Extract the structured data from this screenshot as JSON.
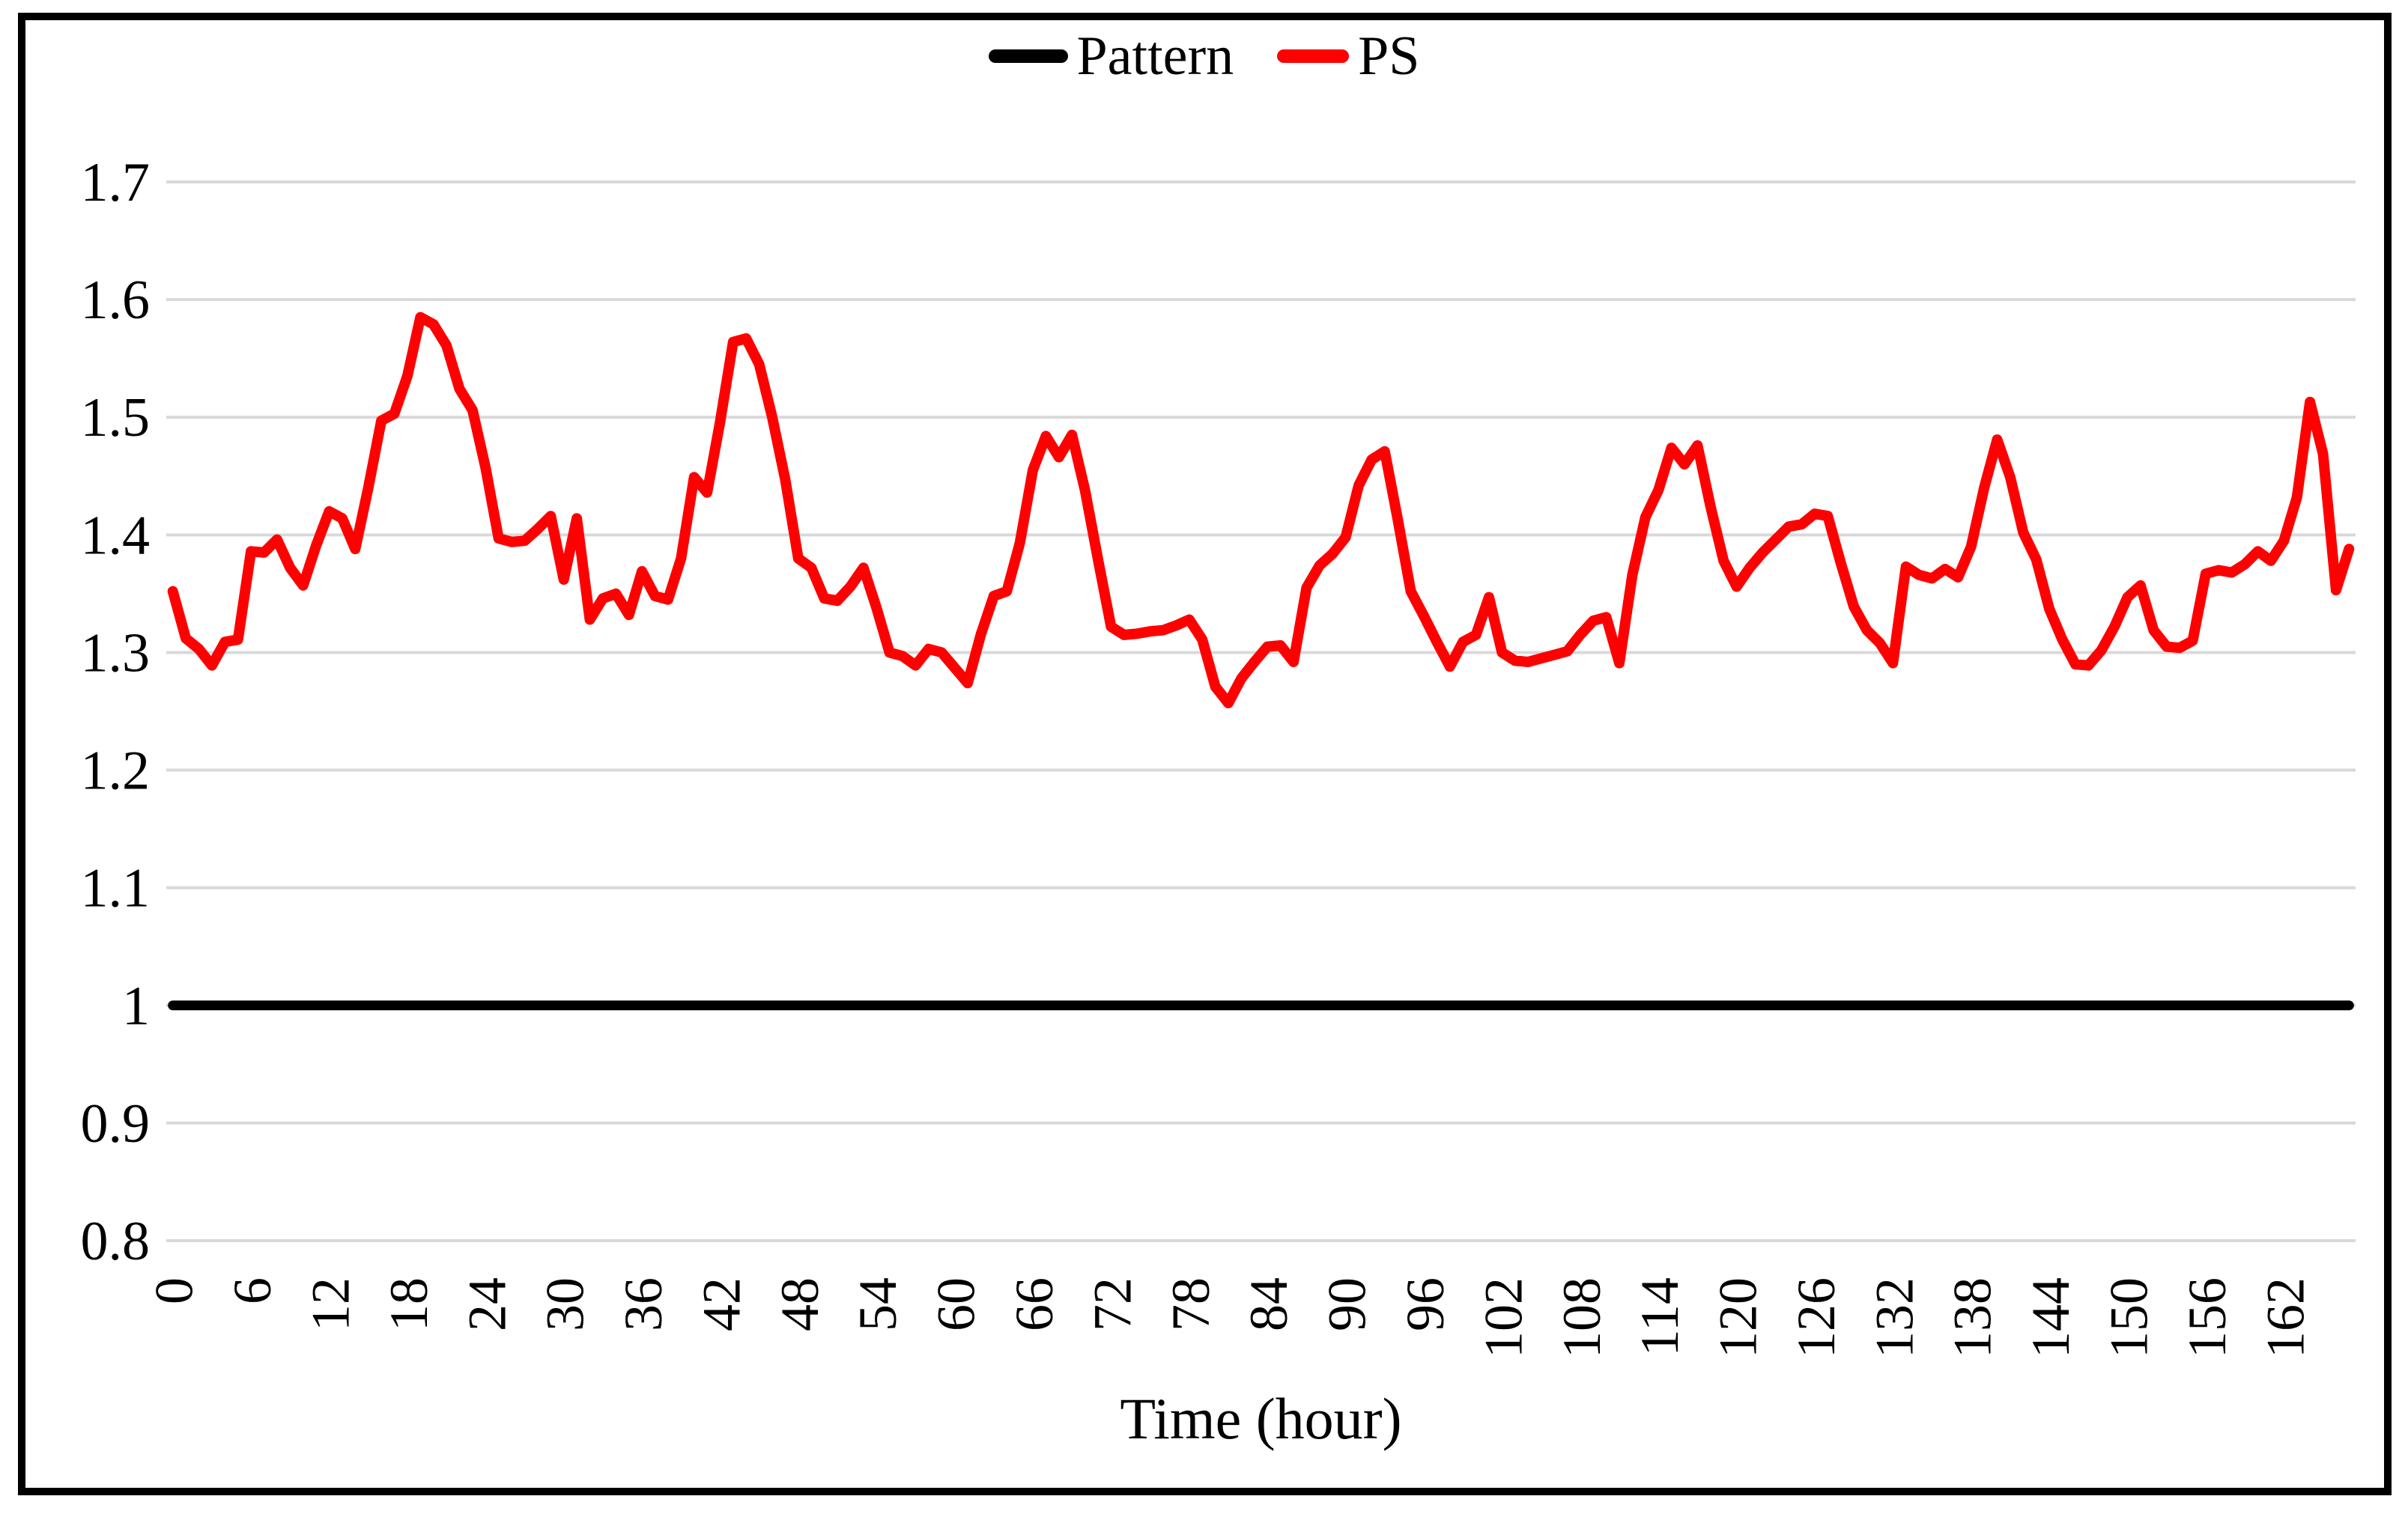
{
  "figure_type": "excel-style line chart",
  "legend": {
    "position": "top-center",
    "entries": [
      "Pattern",
      "PS"
    ]
  },
  "colors": {
    "pattern_line": "#000000",
    "ps_line": "#FF0000",
    "gridline": "#D9D9D9",
    "frame": "#000000",
    "background": "#FFFFFF"
  },
  "chart_data": {
    "type": "line",
    "title": "",
    "xlabel": "Time (hour)",
    "ylabel": "",
    "x_unit": "hour",
    "x": "hourly samples 0 through 167",
    "xtick_labels": [
      "0",
      "6",
      "12",
      "18",
      "24",
      "30",
      "36",
      "42",
      "48",
      "54",
      "60",
      "66",
      "72",
      "78",
      "84",
      "90",
      "96",
      "102",
      "108",
      "114",
      "120",
      "126",
      "132",
      "138",
      "144",
      "150",
      "156",
      "162"
    ],
    "xticks": [
      0,
      6,
      12,
      18,
      24,
      30,
      36,
      42,
      48,
      54,
      60,
      66,
      72,
      78,
      84,
      90,
      96,
      102,
      108,
      114,
      120,
      126,
      132,
      138,
      144,
      150,
      156,
      162
    ],
    "ylim": [
      0.8,
      1.7
    ],
    "ytick_labels": [
      "0.8",
      "0.9",
      "1",
      "1.1",
      "1.2",
      "1.3",
      "1.4",
      "1.5",
      "1.6",
      "1.7"
    ],
    "yticks": [
      0.8,
      0.9,
      1.0,
      1.1,
      1.2,
      1.3,
      1.4,
      1.5,
      1.6,
      1.7
    ],
    "grid": "horizontal only",
    "legend_position": "top-center",
    "series": [
      {
        "name": "Pattern",
        "color": "#000000",
        "stroke_width": 13,
        "constant_value": 1.0,
        "n_points": 168
      },
      {
        "name": "PS",
        "color": "#FF0000",
        "stroke_width": 14,
        "values": [
          1.352,
          1.312,
          1.303,
          1.289,
          1.309,
          1.311,
          1.386,
          1.385,
          1.396,
          1.372,
          1.357,
          1.391,
          1.42,
          1.414,
          1.388,
          1.44,
          1.497,
          1.503,
          1.535,
          1.585,
          1.579,
          1.561,
          1.524,
          1.506,
          1.457,
          1.397,
          1.394,
          1.395,
          1.405,
          1.416,
          1.362,
          1.414,
          1.328,
          1.346,
          1.35,
          1.332,
          1.369,
          1.348,
          1.345,
          1.38,
          1.449,
          1.436,
          1.496,
          1.564,
          1.567,
          1.545,
          1.5,
          1.447,
          1.38,
          1.372,
          1.346,
          1.344,
          1.356,
          1.372,
          1.338,
          1.3,
          1.297,
          1.289,
          1.303,
          1.3,
          1.287,
          1.274,
          1.315,
          1.348,
          1.352,
          1.393,
          1.455,
          1.484,
          1.466,
          1.485,
          1.438,
          1.379,
          1.322,
          1.315,
          1.316,
          1.318,
          1.319,
          1.323,
          1.328,
          1.311,
          1.271,
          1.257,
          1.278,
          1.292,
          1.305,
          1.306,
          1.292,
          1.355,
          1.374,
          1.384,
          1.398,
          1.442,
          1.464,
          1.471,
          1.413,
          1.352,
          1.331,
          1.309,
          1.288,
          1.309,
          1.315,
          1.347,
          1.3,
          1.293,
          1.292,
          1.295,
          1.298,
          1.301,
          1.315,
          1.327,
          1.33,
          1.291,
          1.366,
          1.415,
          1.438,
          1.474,
          1.46,
          1.476,
          1.424,
          1.378,
          1.356,
          1.372,
          1.385,
          1.396,
          1.407,
          1.409,
          1.418,
          1.416,
          1.376,
          1.339,
          1.319,
          1.308,
          1.291,
          1.373,
          1.366,
          1.363,
          1.371,
          1.364,
          1.39,
          1.44,
          1.481,
          1.449,
          1.402,
          1.379,
          1.337,
          1.311,
          1.29,
          1.289,
          1.302,
          1.322,
          1.347,
          1.357,
          1.319,
          1.305,
          1.304,
          1.31,
          1.367,
          1.37,
          1.368,
          1.375,
          1.386,
          1.378,
          1.395,
          1.432,
          1.513,
          1.469,
          1.353,
          1.388
        ]
      }
    ]
  }
}
